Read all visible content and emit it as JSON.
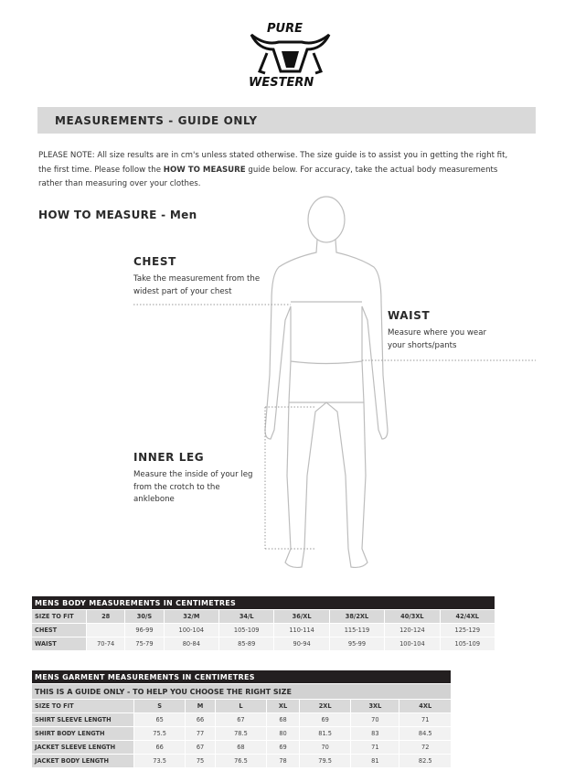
{
  "logo": {
    "line1": "PURE",
    "line2": "WESTERN"
  },
  "header": {
    "title": "MEASUREMENTS - GUIDE ONLY"
  },
  "note": {
    "prefix": "PLEASE NOTE:  All size results are in cm's unless stated otherwise. The size guide is to assist you in getting the right fit, the first time. Please follow the ",
    "bold": "HOW TO MEASURE",
    "suffix": " guide below. For accuracy, take the actual body measurements rather than measuring over your clothes."
  },
  "how_to_measure": {
    "title": "HOW TO MEASURE - Men",
    "chest": {
      "label": "CHEST",
      "desc": "Take the measurement from the widest part of your chest"
    },
    "waist": {
      "label": "WAIST",
      "desc": "Measure where you wear your shorts/pants"
    },
    "inner_leg": {
      "label": "INNER LEG",
      "desc": "Measure the inside of your leg from the crotch to the anklebone"
    }
  },
  "body_table": {
    "title": "MENS BODY MEASUREMENTS IN CENTIMETRES",
    "header": [
      "SIZE TO FIT",
      "28",
      "30/S",
      "32/M",
      "34/L",
      "36/XL",
      "38/2XL",
      "40/3XL",
      "42/4XL"
    ],
    "rows": [
      [
        "CHEST",
        "",
        "96-99",
        "100-104",
        "105-109",
        "110-114",
        "115-119",
        "120-124",
        "125-129"
      ],
      [
        "WAIST",
        "70-74",
        "75-79",
        "80-84",
        "85-89",
        "90-94",
        "95-99",
        "100-104",
        "105-109"
      ]
    ]
  },
  "garment_table": {
    "title": "MENS GARMENT MEASUREMENTS IN CENTIMETRES",
    "subtitle": "THIS IS A GUIDE ONLY - TO HELP YOU CHOOSE THE RIGHT SIZE",
    "header": [
      "SIZE TO FIT",
      "S",
      "M",
      "L",
      "XL",
      "2XL",
      "3XL",
      "4XL"
    ],
    "rows": [
      [
        "SHIRT SLEEVE LENGTH",
        "65",
        "66",
        "67",
        "68",
        "69",
        "70",
        "71"
      ],
      [
        "SHIRT BODY LENGTH",
        "75.5",
        "77",
        "78.5",
        "80",
        "81.5",
        "83",
        "84.5"
      ],
      [
        "JACKET SLEEVE LENGTH",
        "66",
        "67",
        "68",
        "69",
        "70",
        "71",
        "72"
      ],
      [
        "JACKET BODY LENGTH",
        "73.5",
        "75",
        "76.5",
        "78",
        "79.5",
        "81",
        "82.5"
      ]
    ]
  }
}
